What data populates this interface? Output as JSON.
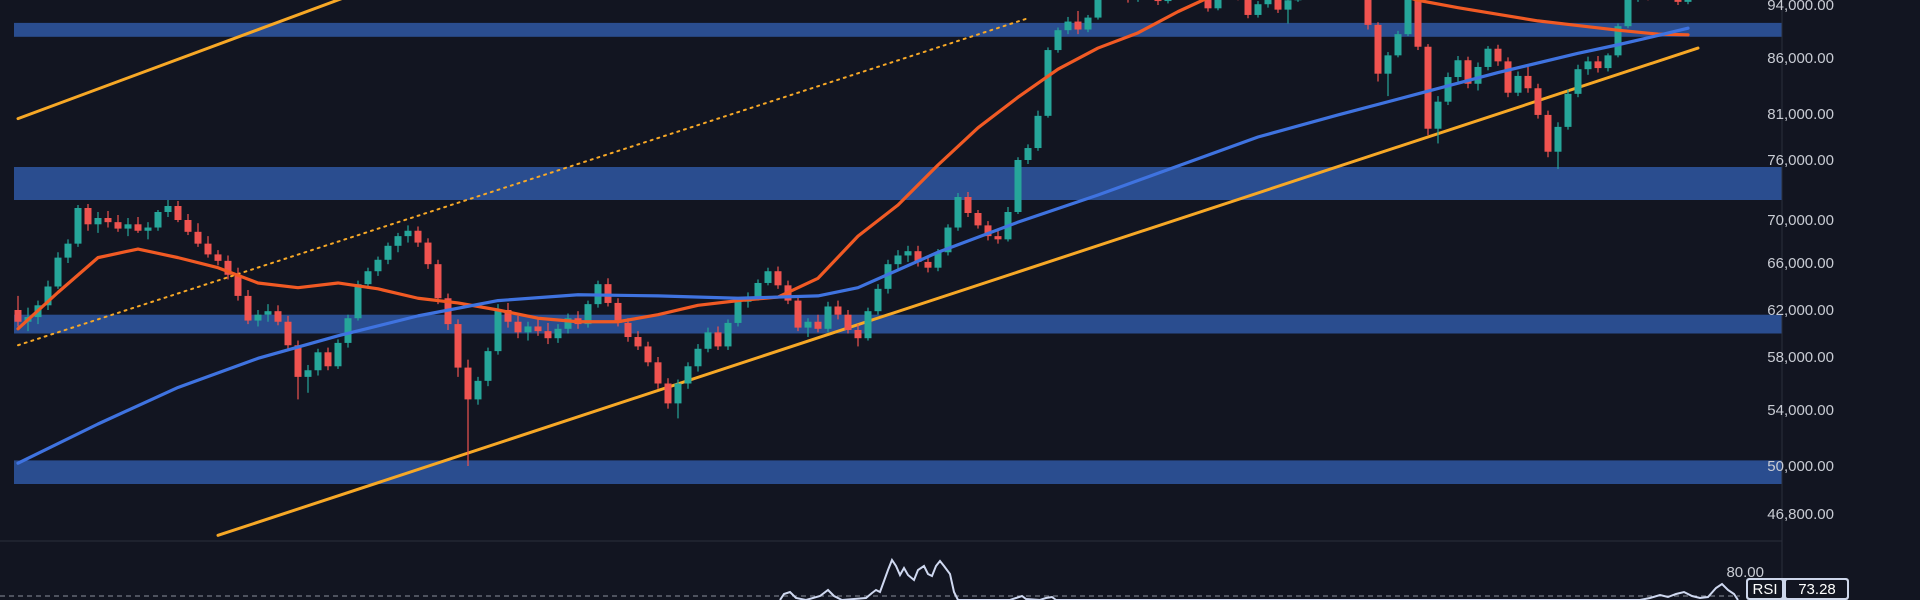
{
  "chart_data": {
    "type": "candlestick",
    "colors": {
      "background": "#121521",
      "up": "#26a69a",
      "down": "#ef5350",
      "zone": "#2a4d8f",
      "trendline": "#f7a826",
      "ma_fast": "#f15a24",
      "ma_slow": "#3f73e0",
      "rsi_line": "#cfd8f0",
      "rsi_badge": "#cdd6ea"
    },
    "y_ticks": [
      "94,000.00",
      "86,000.00",
      "81,000.00",
      "76,000.00",
      "70,000.00",
      "66,000.00",
      "62,000.00",
      "58,000.00",
      "54,000.00",
      "50,000.00",
      "46,800.00"
    ],
    "y_tick_values": [
      94000,
      86000,
      81000,
      76000,
      70000,
      66000,
      62000,
      58000,
      54000,
      50000,
      46800
    ],
    "support_resistance_zones": [
      {
        "low": 89200,
        "high": 91300
      },
      {
        "low": 72000,
        "high": 75300
      },
      {
        "low": 60000,
        "high": 61600
      },
      {
        "low": 48800,
        "high": 50400
      }
    ],
    "moving_averages": [
      {
        "id": "fast",
        "points": [
          [
            0,
            60400
          ],
          [
            4,
            63500
          ],
          [
            8,
            66500
          ],
          [
            12,
            67300
          ],
          [
            16,
            66500
          ],
          [
            20,
            65600
          ],
          [
            24,
            64300
          ],
          [
            28,
            63900
          ],
          [
            32,
            64300
          ],
          [
            36,
            63800
          ],
          [
            40,
            63000
          ],
          [
            44,
            62600
          ],
          [
            48,
            62000
          ],
          [
            52,
            61300
          ],
          [
            56,
            61000
          ],
          [
            60,
            61000
          ],
          [
            64,
            61600
          ],
          [
            68,
            62400
          ],
          [
            72,
            62800
          ],
          [
            76,
            63100
          ],
          [
            80,
            64700
          ],
          [
            84,
            68500
          ],
          [
            88,
            71500
          ],
          [
            92,
            75500
          ],
          [
            96,
            79500
          ],
          [
            100,
            82500
          ],
          [
            104,
            85000
          ],
          [
            108,
            87500
          ],
          [
            112,
            89800
          ],
          [
            116,
            93000
          ],
          [
            120,
            95500
          ],
          [
            124,
            97000
          ],
          [
            128,
            96900
          ],
          [
            132,
            96700
          ],
          [
            136,
            96100
          ],
          [
            140,
            94600
          ],
          [
            144,
            93600
          ],
          [
            148,
            92600
          ],
          [
            152,
            91600
          ],
          [
            156,
            90900
          ],
          [
            160,
            90200
          ],
          [
            164,
            89600
          ],
          [
            167,
            89500
          ]
        ]
      },
      {
        "id": "slow",
        "points": [
          [
            0,
            50200
          ],
          [
            8,
            53000
          ],
          [
            16,
            55700
          ],
          [
            24,
            57900
          ],
          [
            32,
            59800
          ],
          [
            40,
            61500
          ],
          [
            48,
            62800
          ],
          [
            56,
            63300
          ],
          [
            64,
            63200
          ],
          [
            72,
            63000
          ],
          [
            80,
            63200
          ],
          [
            84,
            63900
          ],
          [
            92,
            67000
          ],
          [
            100,
            69800
          ],
          [
            108,
            72500
          ],
          [
            116,
            75400
          ],
          [
            124,
            78500
          ],
          [
            132,
            80900
          ],
          [
            140,
            82800
          ],
          [
            148,
            84700
          ],
          [
            156,
            86700
          ],
          [
            160,
            88000
          ],
          [
            164,
            89400
          ],
          [
            167,
            90500
          ]
        ]
      }
    ],
    "trendlines": [
      {
        "style": "solid",
        "points": [
          [
            0,
            80500
          ],
          [
            37,
            97000
          ]
        ]
      },
      {
        "style": "solid",
        "points": [
          [
            20,
            45500
          ],
          [
            168,
            87500
          ]
        ]
      },
      {
        "style": "dotted",
        "points": [
          [
            0,
            59000
          ],
          [
            101,
            92000
          ]
        ]
      }
    ],
    "candles": [
      [
        62000,
        63200,
        60600,
        61000
      ],
      [
        61000,
        62200,
        60200,
        61400
      ],
      [
        61400,
        62800,
        60800,
        62400
      ],
      [
        62400,
        64500,
        62000,
        64000
      ],
      [
        64000,
        67000,
        63800,
        66500
      ],
      [
        66500,
        68200,
        66000,
        67800
      ],
      [
        67800,
        71500,
        67500,
        71200
      ],
      [
        71200,
        71600,
        69000,
        69600
      ],
      [
        69600,
        70800,
        68800,
        70200
      ],
      [
        70200,
        70900,
        69300,
        69800
      ],
      [
        69800,
        70500,
        68900,
        69200
      ],
      [
        69200,
        70200,
        68500,
        69600
      ],
      [
        69600,
        70300,
        68800,
        69000
      ],
      [
        69000,
        69800,
        68200,
        69300
      ],
      [
        69300,
        71000,
        69000,
        70800
      ],
      [
        70800,
        72000,
        70300,
        71400
      ],
      [
        71400,
        71900,
        69800,
        70000
      ],
      [
        70000,
        70600,
        68600,
        68900
      ],
      [
        68900,
        69700,
        67500,
        67800
      ],
      [
        67800,
        68500,
        66500,
        66800
      ],
      [
        66800,
        67200,
        65800,
        66200
      ],
      [
        66200,
        66700,
        64600,
        65000
      ],
      [
        65000,
        65600,
        62800,
        63200
      ],
      [
        63200,
        63700,
        60800,
        61100
      ],
      [
        61100,
        62000,
        60600,
        61600
      ],
      [
        61600,
        62500,
        61000,
        61900
      ],
      [
        61900,
        62400,
        60700,
        61000
      ],
      [
        61000,
        61500,
        58600,
        59000
      ],
      [
        59000,
        59400,
        54800,
        56500
      ],
      [
        56500,
        57400,
        55300,
        57000
      ],
      [
        57000,
        58700,
        56600,
        58400
      ],
      [
        58400,
        58800,
        57000,
        57300
      ],
      [
        57300,
        59500,
        57100,
        59200
      ],
      [
        59200,
        61600,
        58800,
        61300
      ],
      [
        61300,
        64500,
        61100,
        64200
      ],
      [
        64200,
        65600,
        63800,
        65300
      ],
      [
        65300,
        66600,
        64900,
        66300
      ],
      [
        66300,
        67900,
        65900,
        67600
      ],
      [
        67600,
        68800,
        67000,
        68500
      ],
      [
        68500,
        69500,
        67900,
        69000
      ],
      [
        69000,
        69400,
        67500,
        67900
      ],
      [
        67900,
        68300,
        65500,
        65900
      ],
      [
        65900,
        66300,
        62500,
        63000
      ],
      [
        63000,
        63400,
        60300,
        60800
      ],
      [
        60800,
        61200,
        56500,
        57200
      ],
      [
        57200,
        57800,
        50000,
        54800
      ],
      [
        54800,
        56500,
        54400,
        56200
      ],
      [
        56200,
        58800,
        55800,
        58500
      ],
      [
        58500,
        62500,
        58200,
        62000
      ],
      [
        62000,
        62600,
        60500,
        61000
      ],
      [
        61000,
        61500,
        59600,
        60100
      ],
      [
        60100,
        61000,
        59400,
        60600
      ],
      [
        60600,
        61300,
        59800,
        60200
      ],
      [
        60200,
        60900,
        59100,
        59600
      ],
      [
        59600,
        60800,
        59200,
        60400
      ],
      [
        60400,
        61700,
        60000,
        61300
      ],
      [
        61300,
        61900,
        60400,
        60800
      ],
      [
        60800,
        62800,
        60500,
        62500
      ],
      [
        62500,
        64500,
        62200,
        64200
      ],
      [
        64200,
        64700,
        62300,
        62600
      ],
      [
        62600,
        63000,
        60600,
        60900
      ],
      [
        60900,
        61300,
        59300,
        59700
      ],
      [
        59700,
        60200,
        58600,
        58900
      ],
      [
        58900,
        59300,
        57300,
        57600
      ],
      [
        57600,
        58000,
        55600,
        56000
      ],
      [
        56000,
        56400,
        54100,
        54500
      ],
      [
        54500,
        56300,
        53400,
        56000
      ],
      [
        56000,
        57600,
        55600,
        57300
      ],
      [
        57300,
        59100,
        56900,
        58700
      ],
      [
        58700,
        60500,
        58400,
        60100
      ],
      [
        60100,
        60600,
        58600,
        58900
      ],
      [
        58900,
        61200,
        58600,
        60900
      ],
      [
        60900,
        63100,
        60600,
        62700
      ],
      [
        62700,
        63500,
        62200,
        63000
      ],
      [
        63000,
        64600,
        62800,
        64300
      ],
      [
        64300,
        65600,
        64100,
        65300
      ],
      [
        65300,
        65700,
        63800,
        64100
      ],
      [
        64100,
        64500,
        62500,
        62800
      ],
      [
        62800,
        63200,
        60200,
        60500
      ],
      [
        60500,
        61300,
        59700,
        61000
      ],
      [
        61000,
        61600,
        60100,
        60400
      ],
      [
        60400,
        62700,
        60100,
        62300
      ],
      [
        62300,
        62800,
        61200,
        61600
      ],
      [
        61600,
        62000,
        60000,
        60300
      ],
      [
        60300,
        60800,
        58900,
        59600
      ],
      [
        59600,
        62200,
        59400,
        61900
      ],
      [
        61900,
        64200,
        61600,
        63800
      ],
      [
        63800,
        66300,
        63400,
        65900
      ],
      [
        65900,
        67200,
        65500,
        66700
      ],
      [
        66700,
        67600,
        66100,
        67100
      ],
      [
        67100,
        67600,
        65700,
        66100
      ],
      [
        66100,
        66600,
        65200,
        65600
      ],
      [
        65600,
        67300,
        65300,
        67000
      ],
      [
        67000,
        69600,
        66700,
        69300
      ],
      [
        69300,
        72700,
        69000,
        72300
      ],
      [
        72300,
        72800,
        70300,
        70700
      ],
      [
        70700,
        71000,
        69200,
        69500
      ],
      [
        69500,
        69900,
        68100,
        68500
      ],
      [
        68500,
        69100,
        67800,
        68200
      ],
      [
        68200,
        71300,
        68000,
        70800
      ],
      [
        70800,
        76300,
        70600,
        76000
      ],
      [
        76000,
        77700,
        75600,
        77300
      ],
      [
        77300,
        81300,
        77000,
        80800
      ],
      [
        80800,
        87600,
        80600,
        87200
      ],
      [
        87200,
        90600,
        86800,
        90200
      ],
      [
        90200,
        92200,
        89600,
        91500
      ],
      [
        91500,
        93100,
        89600,
        90300
      ],
      [
        90300,
        92500,
        89900,
        92100
      ],
      [
        92100,
        96300,
        91800,
        95800
      ],
      [
        95800,
        98800,
        95500,
        98300
      ],
      [
        98300,
        99400,
        96600,
        97000
      ],
      [
        97000,
        97800,
        94300,
        94800
      ],
      [
        94800,
        96600,
        94400,
        96200
      ],
      [
        96200,
        97500,
        95400,
        96800
      ],
      [
        96800,
        97300,
        94000,
        94500
      ],
      [
        94500,
        96900,
        94200,
        96400
      ],
      [
        96400,
        99000,
        96100,
        98600
      ],
      [
        98600,
        99400,
        96800,
        97200
      ],
      [
        97200,
        97800,
        94800,
        95300
      ],
      [
        95300,
        96200,
        93000,
        93500
      ],
      [
        93500,
        95800,
        93200,
        95400
      ],
      [
        95400,
        97200,
        95000,
        96800
      ],
      [
        96800,
        97400,
        94600,
        95000
      ],
      [
        95000,
        95800,
        92000,
        92500
      ],
      [
        92500,
        94500,
        92100,
        94100
      ],
      [
        94100,
        95600,
        93600,
        95100
      ],
      [
        95100,
        95800,
        92800,
        93300
      ],
      [
        93300,
        95000,
        91200,
        94600
      ],
      [
        94600,
        97400,
        94400,
        97000
      ],
      [
        97000,
        99200,
        96600,
        98800
      ],
      [
        98800,
        99700,
        97300,
        97800
      ],
      [
        97800,
        99300,
        97400,
        98900
      ],
      [
        98900,
        99800,
        97800,
        98200
      ],
      [
        98200,
        99600,
        97900,
        99100
      ],
      [
        99100,
        99500,
        96600,
        97100
      ],
      [
        97100,
        97400,
        90300,
        91000
      ],
      [
        91000,
        91400,
        83900,
        84600
      ],
      [
        84600,
        86900,
        82600,
        86400
      ],
      [
        86400,
        90100,
        86100,
        89600
      ],
      [
        89600,
        95700,
        89300,
        95100
      ],
      [
        95100,
        95600,
        87200,
        87700
      ],
      [
        87700,
        88100,
        78700,
        79400
      ],
      [
        79400,
        82600,
        77800,
        82100
      ],
      [
        82100,
        84700,
        81800,
        84300
      ],
      [
        84300,
        86300,
        83900,
        85800
      ],
      [
        85800,
        86200,
        83300,
        83700
      ],
      [
        83700,
        85600,
        83100,
        85200
      ],
      [
        85200,
        87800,
        84900,
        87400
      ],
      [
        87400,
        88000,
        85300,
        85700
      ],
      [
        85700,
        86100,
        82500,
        82900
      ],
      [
        82900,
        84800,
        82600,
        84400
      ],
      [
        84400,
        85200,
        82900,
        83300
      ],
      [
        83300,
        83700,
        80500,
        80900
      ],
      [
        80900,
        81300,
        76300,
        76900
      ],
      [
        76900,
        80100,
        75100,
        79600
      ],
      [
        79600,
        83200,
        79300,
        82800
      ],
      [
        82800,
        85400,
        82500,
        85000
      ],
      [
        85000,
        86200,
        84500,
        85700
      ],
      [
        85700,
        86300,
        84700,
        85100
      ],
      [
        85100,
        86700,
        84800,
        86400
      ],
      [
        86400,
        91200,
        86100,
        90800
      ],
      [
        90800,
        95200,
        90500,
        94800
      ],
      [
        94800,
        96700,
        94400,
        96200
      ],
      [
        96200,
        96600,
        94600,
        95000
      ],
      [
        95000,
        97100,
        94700,
        96700
      ],
      [
        96700,
        97300,
        95300,
        95700
      ],
      [
        95700,
        96100,
        94000,
        94400
      ],
      [
        94400,
        96000,
        94100,
        95600
      ]
    ],
    "rsi": {
      "label": "RSI",
      "value": "73.28",
      "level_label": "80.00"
    }
  }
}
